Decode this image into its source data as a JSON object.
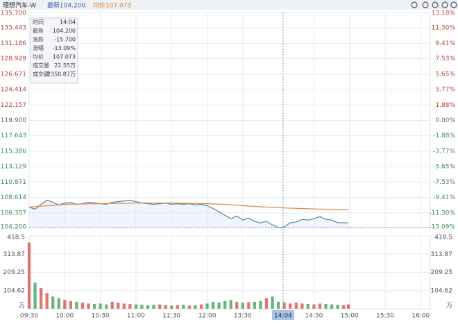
{
  "header": {
    "name": "理想汽车-W",
    "last": "最新104.200",
    "avg": "均价107.073"
  },
  "tooltip": {
    "rows": [
      [
        "时间",
        "14:04"
      ],
      [
        "最新",
        "104.200"
      ],
      [
        "涨跌",
        "-15.700"
      ],
      [
        "涨幅",
        "-13.09%"
      ],
      [
        "均价",
        "107.073"
      ],
      [
        "成交量",
        "22.55万"
      ],
      [
        "成交额",
        "2350.87万"
      ]
    ]
  },
  "chart_data": [
    {
      "type": "line",
      "x": [
        0,
        5,
        10,
        15,
        20,
        25,
        30,
        35,
        40,
        45,
        50,
        55,
        60,
        65,
        70,
        75,
        80,
        85,
        90,
        95,
        100,
        105,
        110,
        115,
        120,
        125,
        130,
        135,
        140,
        145,
        150,
        155,
        160,
        165,
        170,
        175,
        180,
        185,
        190,
        195,
        200,
        205,
        210,
        215,
        220,
        225,
        230,
        235,
        240,
        245,
        250,
        255,
        260,
        265,
        269
      ],
      "series": [
        {
          "color": "#5b7fa6",
          "values": [
            107.2,
            106.9,
            107.6,
            108.2,
            107.9,
            107.5,
            107.8,
            107.9,
            107.6,
            107.7,
            107.9,
            107.8,
            107.7,
            107.6,
            107.9,
            108.0,
            108.1,
            108.2,
            108.0,
            107.8,
            107.7,
            107.6,
            107.7,
            107.8,
            107.6,
            107.7,
            107.6,
            107.7,
            107.5,
            107.6,
            107.4,
            107.0,
            106.5,
            106.0,
            105.5,
            105.9,
            105.3,
            105.6,
            105.1,
            104.9,
            105.1,
            104.6,
            104.2,
            104.3,
            104.9,
            105.0,
            105.4,
            105.3,
            105.5,
            105.8,
            105.4,
            105.3,
            104.9,
            104.9,
            104.9
          ]
        },
        {
          "color": "#e0883a",
          "x": [
            0,
            30,
            60,
            90,
            120,
            150,
            165,
            180,
            200,
            214,
            245,
            269
          ],
          "values": [
            107.2,
            107.6,
            107.7,
            107.8,
            107.8,
            107.7,
            107.6,
            107.4,
            107.2,
            107.073,
            106.9,
            106.8
          ]
        }
      ],
      "xlim": [
        0,
        338
      ],
      "ylim": [
        104.2,
        135.7
      ],
      "yticks": [
        {
          "value": 135.7,
          "label": "135.700"
        },
        133.443,
        131.186,
        128.929,
        126.671,
        124.414,
        122.157,
        {
          "value": 119.9,
          "label": "119.900"
        },
        117.643,
        115.386,
        113.129,
        110.871,
        108.614,
        106.357,
        {
          "value": 104.2,
          "label": "104.200"
        }
      ],
      "y2lim": [
        -13.09,
        13.18
      ],
      "y2ticks": [
        {
          "value": 13.18,
          "label": "13.18%"
        },
        {
          "value": 11.3,
          "label": "11.30%"
        },
        {
          "value": 9.41,
          "label": "9.41%"
        },
        {
          "value": 7.53,
          "label": "7.53%"
        },
        {
          "value": 5.65,
          "label": "5.65%"
        },
        {
          "value": 3.77,
          "label": "3.77%"
        },
        {
          "value": 1.88,
          "label": "1.88%"
        },
        {
          "value": 0,
          "label": "0.00%"
        },
        {
          "value": -1.88,
          "label": "-1.88%"
        },
        {
          "value": -3.77,
          "label": "-3.77%"
        },
        {
          "value": -5.65,
          "label": "-5.65%"
        },
        {
          "value": -7.53,
          "label": "-7.53%"
        },
        {
          "value": -9.41,
          "label": "-9.41%"
        },
        {
          "value": -11.3,
          "label": "-11.30%"
        },
        {
          "value": -13.09,
          "label": "-13.09%"
        }
      ],
      "cursor": {
        "value": 214,
        "label": "14:04"
      },
      "grid": true
    },
    {
      "type": "bar",
      "up_color": "#d9453d",
      "down_color": "#2f9e55",
      "values": [
        380,
        150,
        120,
        90,
        70,
        60,
        50,
        45,
        40,
        35,
        30,
        28,
        30,
        25,
        40,
        35,
        30,
        28,
        25,
        22,
        20,
        22,
        25,
        20,
        18,
        20,
        22,
        18,
        20,
        25,
        30,
        40,
        35,
        45,
        50,
        40,
        35,
        38,
        40,
        45,
        60,
        70,
        40,
        35,
        30,
        35,
        30,
        28,
        25,
        30,
        28,
        25,
        22,
        20,
        25
      ],
      "ylim": [
        0,
        418.5
      ],
      "yticks": [
        418.5,
        313.87,
        209.25,
        104.62,
        {
          "value": 0,
          "label": "万"
        }
      ],
      "xticks": [
        {
          "value": 0,
          "label": "09:30"
        },
        {
          "value": 30,
          "label": "10:00"
        },
        {
          "value": 60,
          "label": "10:30"
        },
        {
          "value": 90,
          "label": "11:00"
        },
        {
          "value": 120,
          "label": "11:30"
        },
        {
          "value": 150,
          "label": "12:00"
        },
        {
          "value": 180,
          "label": "13:30"
        },
        {
          "value": 240,
          "label": "14:30"
        },
        {
          "value": 270,
          "label": "15:00"
        },
        {
          "value": 300,
          "label": "15:30"
        },
        {
          "value": 330,
          "label": "16:00"
        }
      ],
      "grid": true
    }
  ]
}
